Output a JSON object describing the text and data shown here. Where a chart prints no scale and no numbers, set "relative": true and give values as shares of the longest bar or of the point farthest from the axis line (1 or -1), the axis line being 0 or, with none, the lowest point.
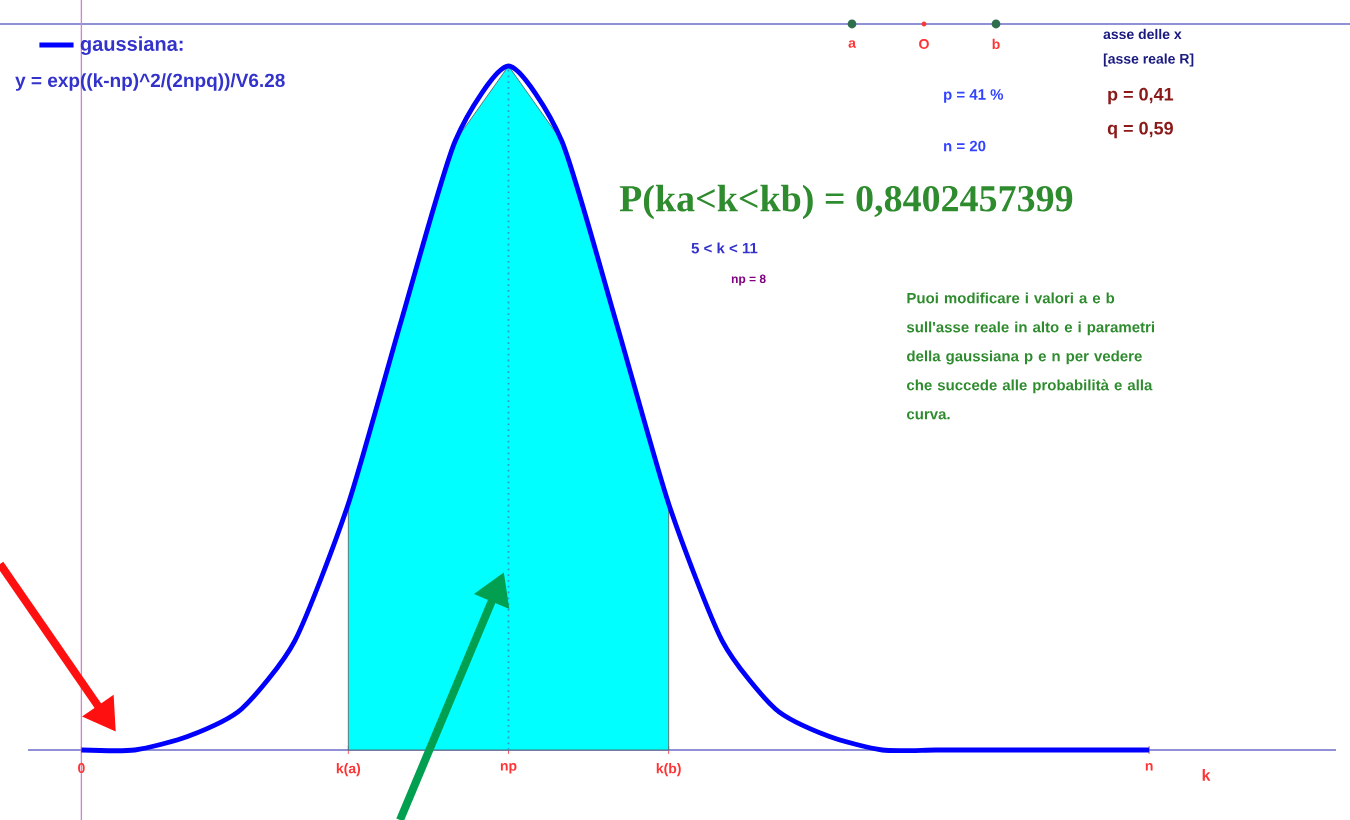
{
  "chart_data": {
    "type": "line",
    "relative": true,
    "categories": [
      "0",
      null,
      null,
      null,
      null,
      "k(a)",
      null,
      null,
      "np",
      null,
      null,
      "k(b)",
      null,
      null,
      null,
      null,
      null,
      null,
      null,
      null,
      "n"
    ],
    "series": [
      {
        "name": "gaussiana:",
        "color": "#0000ff",
        "values": [
          0,
          0,
          0.02,
          0.06,
          0.16,
          0.36,
          0.63,
          0.89,
          1,
          0.89,
          0.63,
          0.36,
          0.16,
          0.06,
          0.02,
          0,
          0,
          0,
          0,
          0,
          0
        ]
      },
      {
        "type": "area",
        "color": "#00ffff",
        "values": [
          null,
          null,
          null,
          null,
          null,
          0.36,
          0.63,
          0.89,
          1,
          0.89,
          0.63,
          0.36,
          null,
          null,
          null,
          null,
          null,
          null,
          null,
          null,
          null
        ]
      }
    ],
    "xlabel": "k",
    "legend": "top left",
    "ref_lines": [
      {
        "axis": "x",
        "value": "np",
        "color": "#3399cc",
        "line_style": "dotted"
      }
    ],
    "annotations": [
      "y = exp((k-np)^2/(2npq))/V6.28",
      "asse delle x",
      "[asse reale R]",
      "p =  41 %",
      "n =  20",
      "p = 0,41",
      "q = 0,59",
      "P(ka<k<kb) =  0,8402457399",
      "5  < k <  11",
      "np = 8",
      "Puoi modificare i valori a e b sull'asse reale in alto e i parametri della gaussiana p e n per vedere che succede alle probabilità e alla curva.",
      "a",
      "O",
      "b"
    ]
  }
}
